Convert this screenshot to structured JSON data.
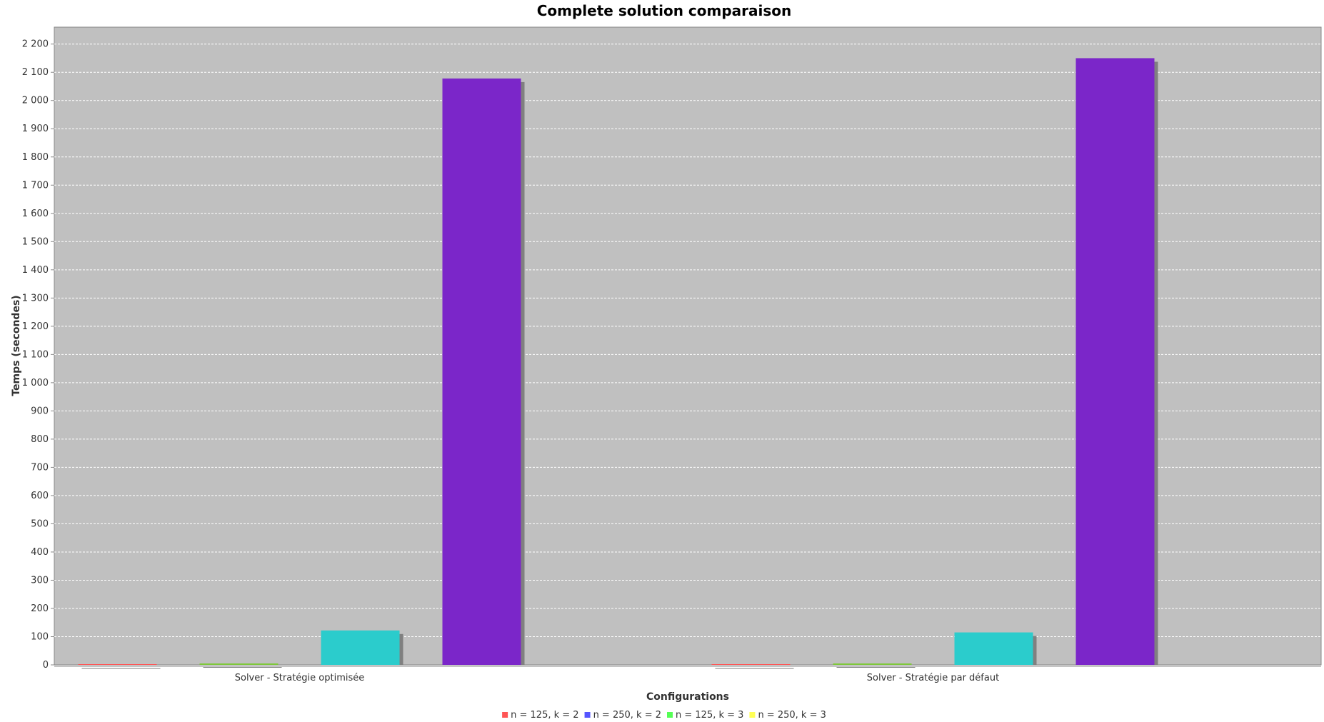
{
  "chart_data": {
    "type": "bar",
    "title": "Complete solution comparaison",
    "xlabel": "Configurations",
    "ylabel": "Temps (secondes)",
    "ylim": [
      0,
      2260
    ],
    "yticks": [
      0,
      100,
      200,
      300,
      400,
      500,
      600,
      700,
      800,
      900,
      1000,
      1100,
      1200,
      1300,
      1400,
      1500,
      1600,
      1700,
      1800,
      1900,
      2000,
      2100,
      2200
    ],
    "ytick_labels": [
      "0",
      "100",
      "200",
      "300",
      "400",
      "500",
      "600",
      "700",
      "800",
      "900",
      "1 000",
      "1 100",
      "1 200",
      "1 300",
      "1 400",
      "1 500",
      "1 600",
      "1 700",
      "1 800",
      "1 900",
      "2 000",
      "2 100",
      "2 200"
    ],
    "grid": true,
    "legend_position": "bottom",
    "categories": [
      "Solver - Stratégie optimisée",
      "Solver - Stratégie par défaut"
    ],
    "series": [
      {
        "name": "n = 125, k = 2",
        "color": "#ff5555",
        "values": [
          1,
          1
        ]
      },
      {
        "name": "n = 250, k = 2",
        "color": "#5555ff",
        "values": [
          5,
          5
        ]
      },
      {
        "name": "n = 125, k = 3",
        "color": "#55ff55",
        "values": [
          122,
          115
        ]
      },
      {
        "name": "n = 250, k = 3",
        "color": "#ffff55",
        "values": [
          2078,
          2150
        ]
      }
    ],
    "bar_colors": [
      "#ff5555",
      "#7ec83a",
      "#2bcccc",
      "#7b26c9"
    ]
  }
}
